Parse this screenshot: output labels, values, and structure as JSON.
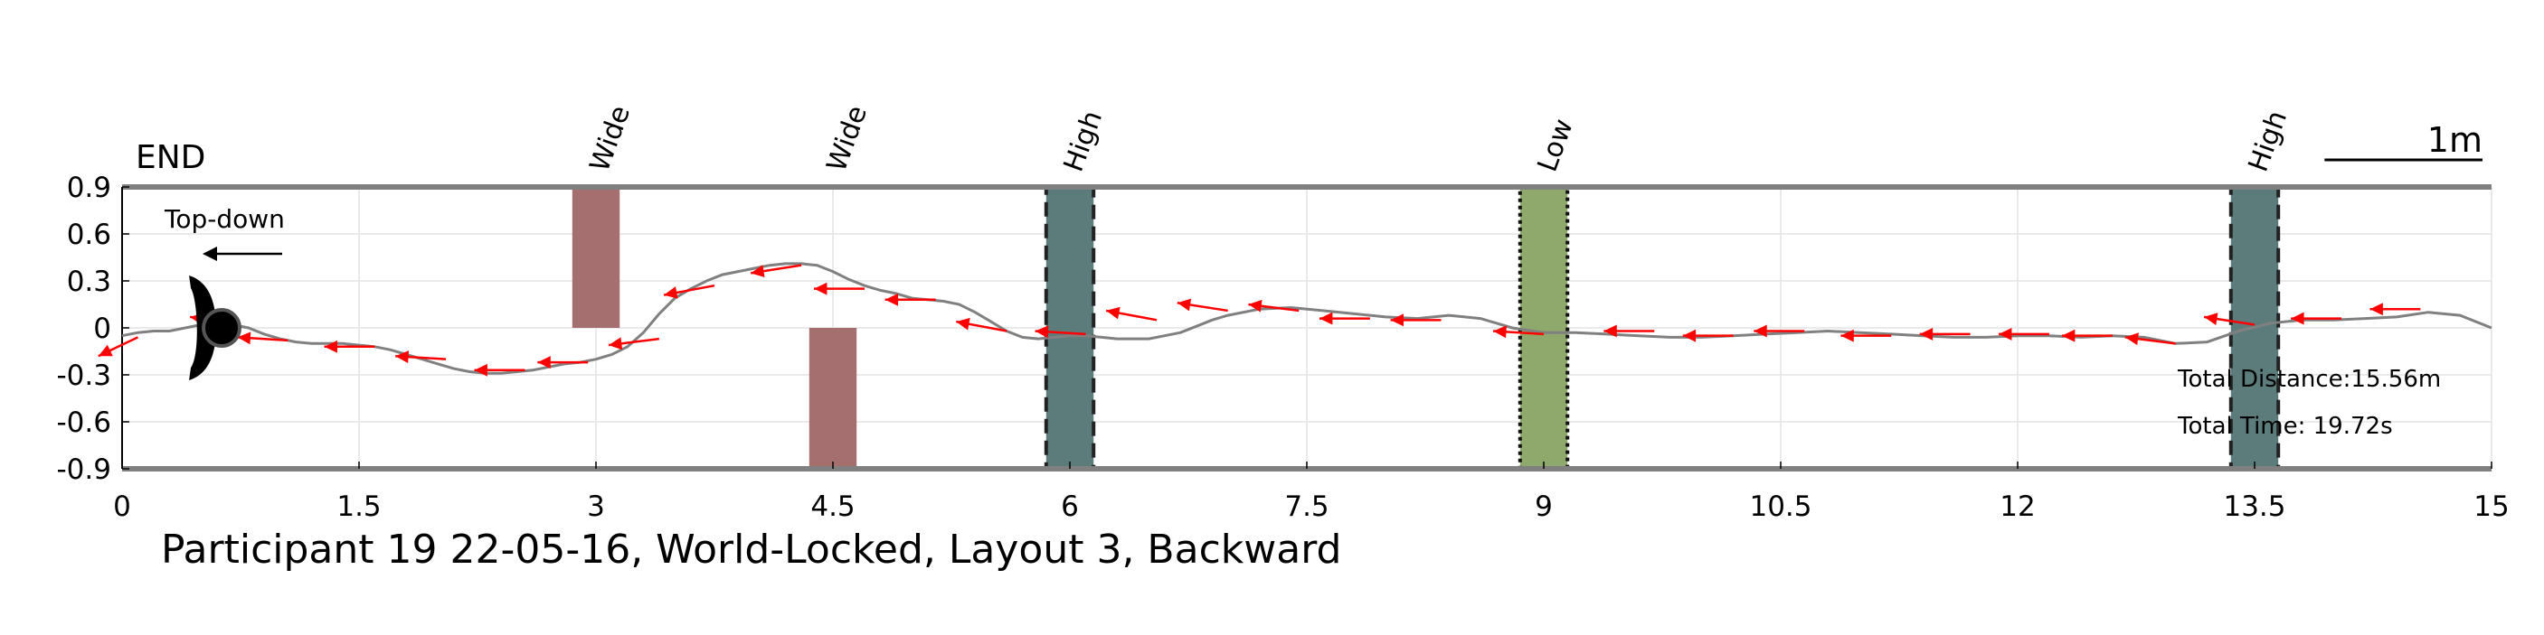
{
  "chart_data": {
    "type": "line",
    "title": "Participant 19 22-05-16, World-Locked, Layout 3, Backward",
    "xlim": [
      0,
      15
    ],
    "ylim": [
      -0.9,
      0.9
    ],
    "x_ticks": [
      0,
      1.5,
      3,
      4.5,
      6,
      7.5,
      9,
      10.5,
      12,
      13.5,
      15
    ],
    "x_tick_labels": [
      "0",
      "1.5",
      "3",
      "4.5",
      "6",
      "7.5",
      "9",
      "10.5",
      "12",
      "13.5",
      "15"
    ],
    "y_ticks": [
      0.9,
      0.6,
      0.3,
      0,
      -0.3,
      -0.6,
      -0.9
    ],
    "y_tick_labels": [
      "0.9",
      "0.6",
      "0.3",
      "0",
      "-0.3",
      "-0.6",
      "-0.9"
    ],
    "grid": true,
    "end_label": "END",
    "view_label": "Top-down",
    "scale_label": "1m",
    "scale_length": 1,
    "stats": {
      "distance": "Total Distance:15.56m",
      "time": "Total Time: 19.72s"
    },
    "obstacles": [
      {
        "label": "Wide",
        "kind": "wide",
        "x0": 2.85,
        "x1": 3.15,
        "y0": 0,
        "y1": 0.9,
        "color": "#a66f6f"
      },
      {
        "label": "Wide",
        "kind": "wide",
        "x0": 4.35,
        "x1": 4.65,
        "y0": -0.9,
        "y1": 0,
        "color": "#a66f6f"
      },
      {
        "label": "High",
        "kind": "high",
        "x0": 5.85,
        "x1": 6.15,
        "y0": -0.9,
        "y1": 0.9,
        "color": "#5c7c7c"
      },
      {
        "label": "Low",
        "kind": "low",
        "x0": 8.85,
        "x1": 9.15,
        "y0": -0.9,
        "y1": 0.9,
        "color": "#8fa86c"
      },
      {
        "label": "High",
        "kind": "high",
        "x0": 13.35,
        "x1": 13.65,
        "y0": -0.9,
        "y1": 0.9,
        "color": "#5c7c7c"
      }
    ],
    "series": [
      {
        "color": "#808080",
        "x": [
          0,
          0.1,
          0.2,
          0.3,
          0.4,
          0.5,
          0.6,
          0.7,
          0.8,
          0.9,
          1.0,
          1.1,
          1.2,
          1.3,
          1.4,
          1.5,
          1.6,
          1.7,
          1.8,
          1.9,
          2.0,
          2.1,
          2.2,
          2.3,
          2.4,
          2.5,
          2.6,
          2.7,
          2.8,
          2.9,
          3.0,
          3.1,
          3.2,
          3.3,
          3.4,
          3.5,
          3.6,
          3.7,
          3.8,
          3.9,
          4.0,
          4.1,
          4.2,
          4.3,
          4.4,
          4.5,
          4.6,
          4.7,
          4.8,
          4.9,
          5.0,
          5.1,
          5.2,
          5.3,
          5.4,
          5.5,
          5.6,
          5.7,
          5.8,
          5.9,
          6.0,
          6.1,
          6.2,
          6.3,
          6.4,
          6.5,
          6.6,
          6.7,
          6.8,
          6.9,
          7.0,
          7.2,
          7.4,
          7.6,
          7.8,
          8.0,
          8.2,
          8.4,
          8.6,
          8.8,
          9.0,
          9.2,
          9.4,
          9.6,
          9.8,
          10.0,
          10.2,
          10.4,
          10.6,
          10.8,
          11.0,
          11.2,
          11.4,
          11.6,
          11.8,
          12.0,
          12.2,
          12.4,
          12.6,
          12.8,
          13.0,
          13.2,
          13.4,
          13.6,
          13.8,
          14.0,
          14.2,
          14.4,
          14.6,
          14.8,
          15.0
        ],
        "y": [
          -0.05,
          -0.03,
          -0.02,
          -0.02,
          0.0,
          0.02,
          0.04,
          0.02,
          0.0,
          -0.04,
          -0.07,
          -0.09,
          -0.1,
          -0.1,
          -0.1,
          -0.11,
          -0.12,
          -0.14,
          -0.17,
          -0.2,
          -0.23,
          -0.26,
          -0.28,
          -0.29,
          -0.29,
          -0.28,
          -0.27,
          -0.25,
          -0.23,
          -0.22,
          -0.2,
          -0.17,
          -0.12,
          -0.03,
          0.09,
          0.19,
          0.25,
          0.3,
          0.34,
          0.36,
          0.38,
          0.4,
          0.41,
          0.41,
          0.4,
          0.36,
          0.31,
          0.27,
          0.24,
          0.22,
          0.19,
          0.18,
          0.17,
          0.15,
          0.1,
          0.04,
          -0.02,
          -0.06,
          -0.07,
          -0.06,
          -0.05,
          -0.05,
          -0.06,
          -0.07,
          -0.07,
          -0.07,
          -0.05,
          -0.03,
          0.01,
          0.05,
          0.08,
          0.12,
          0.13,
          0.11,
          0.09,
          0.07,
          0.06,
          0.08,
          0.06,
          0.0,
          -0.03,
          -0.03,
          -0.04,
          -0.05,
          -0.06,
          -0.06,
          -0.05,
          -0.04,
          -0.03,
          -0.02,
          -0.03,
          -0.04,
          -0.05,
          -0.06,
          -0.06,
          -0.05,
          -0.05,
          -0.06,
          -0.05,
          -0.06,
          -0.1,
          -0.09,
          -0.02,
          0.03,
          0.05,
          0.05,
          0.06,
          0.07,
          0.1,
          0.08,
          0.0
        ]
      }
    ],
    "heading_arrows": [
      {
        "x": 0.1,
        "y": -0.06,
        "dx": -0.25,
        "dy": -0.12
      },
      {
        "x": 0.75,
        "y": 0.02,
        "dx": -0.32,
        "dy": 0.05
      },
      {
        "x": 1.05,
        "y": -0.08,
        "dx": -0.32,
        "dy": 0.02
      },
      {
        "x": 1.6,
        "y": -0.12,
        "dx": -0.32,
        "dy": 0.0
      },
      {
        "x": 2.05,
        "y": -0.2,
        "dx": -0.32,
        "dy": 0.02
      },
      {
        "x": 2.55,
        "y": -0.27,
        "dx": -0.32,
        "dy": 0.0
      },
      {
        "x": 2.95,
        "y": -0.22,
        "dx": -0.32,
        "dy": 0.0
      },
      {
        "x": 3.4,
        "y": -0.07,
        "dx": -0.32,
        "dy": -0.04
      },
      {
        "x": 3.75,
        "y": 0.27,
        "dx": -0.32,
        "dy": -0.06
      },
      {
        "x": 4.3,
        "y": 0.4,
        "dx": -0.32,
        "dy": -0.05
      },
      {
        "x": 4.7,
        "y": 0.25,
        "dx": -0.32,
        "dy": 0.0
      },
      {
        "x": 5.15,
        "y": 0.18,
        "dx": -0.32,
        "dy": 0.0
      },
      {
        "x": 5.6,
        "y": -0.02,
        "dx": -0.32,
        "dy": 0.06
      },
      {
        "x": 6.1,
        "y": -0.04,
        "dx": -0.32,
        "dy": 0.02
      },
      {
        "x": 6.55,
        "y": 0.05,
        "dx": -0.32,
        "dy": 0.06
      },
      {
        "x": 7.0,
        "y": 0.11,
        "dx": -0.32,
        "dy": 0.05
      },
      {
        "x": 7.45,
        "y": 0.11,
        "dx": -0.32,
        "dy": 0.04
      },
      {
        "x": 7.9,
        "y": 0.06,
        "dx": -0.32,
        "dy": 0.0
      },
      {
        "x": 8.35,
        "y": 0.05,
        "dx": -0.32,
        "dy": 0.0
      },
      {
        "x": 9.0,
        "y": -0.04,
        "dx": -0.32,
        "dy": 0.02
      },
      {
        "x": 9.7,
        "y": -0.02,
        "dx": -0.32,
        "dy": 0.0
      },
      {
        "x": 10.2,
        "y": -0.05,
        "dx": -0.32,
        "dy": 0.0
      },
      {
        "x": 10.65,
        "y": -0.02,
        "dx": -0.32,
        "dy": 0.0
      },
      {
        "x": 11.2,
        "y": -0.05,
        "dx": -0.32,
        "dy": 0.0
      },
      {
        "x": 11.7,
        "y": -0.04,
        "dx": -0.32,
        "dy": 0.0
      },
      {
        "x": 12.2,
        "y": -0.04,
        "dx": -0.32,
        "dy": 0.0
      },
      {
        "x": 12.6,
        "y": -0.05,
        "dx": -0.32,
        "dy": 0.0
      },
      {
        "x": 13.0,
        "y": -0.1,
        "dx": -0.32,
        "dy": 0.04
      },
      {
        "x": 13.5,
        "y": 0.02,
        "dx": -0.32,
        "dy": 0.05
      },
      {
        "x": 14.05,
        "y": 0.06,
        "dx": -0.32,
        "dy": 0.0
      },
      {
        "x": 14.55,
        "y": 0.12,
        "dx": -0.32,
        "dy": 0.0
      }
    ],
    "end_marker": {
      "x": 0.63,
      "y": 0.0
    },
    "colors": {
      "arrow": "#ff0000",
      "axis": "#808080",
      "grid": "#e4e4e4"
    }
  }
}
